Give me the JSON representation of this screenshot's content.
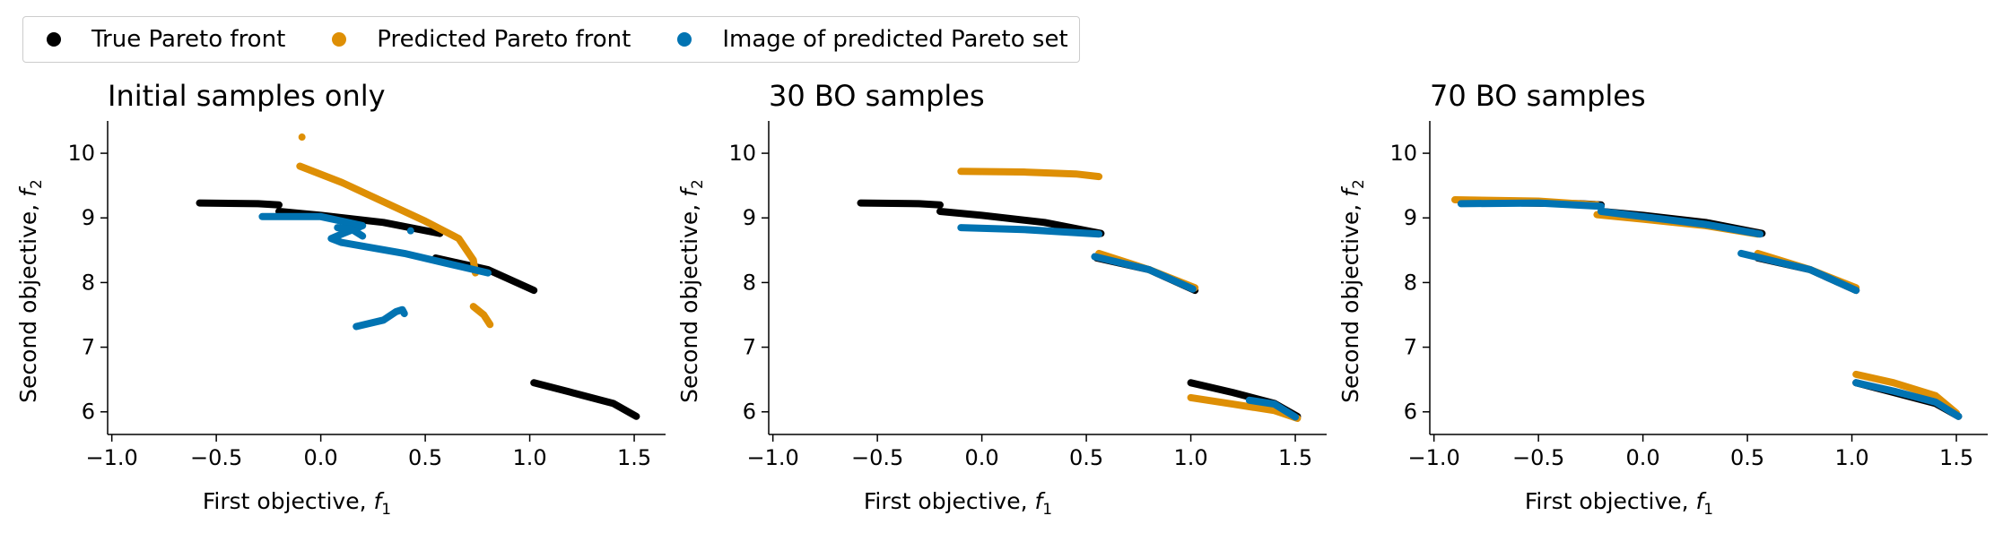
{
  "legend": [
    {
      "label": "True Pareto front",
      "color": "#000000"
    },
    {
      "label": "Predicted Pareto front",
      "color": "#de8f05"
    },
    {
      "label": "Image of predicted Pareto set",
      "color": "#0173b2"
    }
  ],
  "chart_data": [
    {
      "type": "scatter",
      "title": "Initial samples only",
      "xlabel": "First objective, ",
      "ylabel": "Second objective, ",
      "xlim": [
        -1.02,
        1.65
      ],
      "ylim": [
        5.65,
        10.5
      ],
      "xticks": [
        -1.0,
        -0.5,
        0.0,
        0.5,
        1.0,
        1.5
      ],
      "yticks": [
        6,
        7,
        8,
        9,
        10
      ],
      "series": [
        {
          "name": "True Pareto front",
          "color": "#000000",
          "segments": [
            [
              [
                -0.58,
                9.23
              ],
              [
                -0.3,
                9.22
              ],
              [
                -0.2,
                9.2
              ]
            ],
            [
              [
                -0.2,
                9.1
              ],
              [
                0.0,
                9.04
              ],
              [
                0.3,
                8.93
              ],
              [
                0.57,
                8.76
              ]
            ],
            [
              [
                0.55,
                8.38
              ],
              [
                0.8,
                8.2
              ],
              [
                1.02,
                7.88
              ]
            ],
            [
              [
                1.02,
                6.45
              ],
              [
                1.2,
                6.3
              ],
              [
                1.4,
                6.13
              ],
              [
                1.51,
                5.93
              ]
            ]
          ]
        },
        {
          "name": "Predicted Pareto front",
          "color": "#de8f05",
          "points": [
            [
              -0.09,
              10.25
            ]
          ],
          "segments": [
            [
              [
                -0.1,
                9.8
              ],
              [
                0.1,
                9.55
              ],
              [
                0.3,
                9.25
              ],
              [
                0.5,
                8.95
              ],
              [
                0.66,
                8.68
              ],
              [
                0.73,
                8.35
              ],
              [
                0.74,
                8.15
              ]
            ],
            [
              [
                0.73,
                7.63
              ],
              [
                0.78,
                7.5
              ],
              [
                0.81,
                7.35
              ]
            ]
          ]
        },
        {
          "name": "Image of predicted Pareto set",
          "color": "#0173b2",
          "points": [
            [
              0.43,
              8.8
            ]
          ],
          "segments": [
            [
              [
                -0.28,
                9.02
              ],
              [
                0.0,
                9.02
              ],
              [
                0.2,
                8.88
              ],
              [
                0.1,
                8.75
              ],
              [
                0.05,
                8.68
              ],
              [
                0.1,
                8.62
              ],
              [
                0.4,
                8.45
              ],
              [
                0.6,
                8.3
              ],
              [
                0.8,
                8.15
              ]
            ],
            [
              [
                0.08,
                8.85
              ],
              [
                0.15,
                8.82
              ],
              [
                0.2,
                8.72
              ]
            ],
            [
              [
                0.17,
                7.32
              ],
              [
                0.3,
                7.42
              ],
              [
                0.36,
                7.55
              ],
              [
                0.39,
                7.58
              ],
              [
                0.4,
                7.52
              ]
            ]
          ]
        }
      ]
    },
    {
      "type": "scatter",
      "title": "30 BO samples",
      "xlabel": "First objective, ",
      "ylabel": "Second objective, ",
      "xlim": [
        -1.02,
        1.65
      ],
      "ylim": [
        5.65,
        10.5
      ],
      "xticks": [
        -1.0,
        -0.5,
        0.0,
        0.5,
        1.0,
        1.5
      ],
      "yticks": [
        6,
        7,
        8,
        9,
        10
      ],
      "series": [
        {
          "name": "True Pareto front",
          "color": "#000000",
          "segments": [
            [
              [
                -0.58,
                9.23
              ],
              [
                -0.3,
                9.22
              ],
              [
                -0.2,
                9.2
              ]
            ],
            [
              [
                -0.2,
                9.1
              ],
              [
                0.0,
                9.04
              ],
              [
                0.3,
                8.93
              ],
              [
                0.57,
                8.76
              ]
            ],
            [
              [
                0.55,
                8.38
              ],
              [
                0.8,
                8.2
              ],
              [
                1.02,
                7.88
              ]
            ],
            [
              [
                1.0,
                6.45
              ],
              [
                1.2,
                6.3
              ],
              [
                1.4,
                6.13
              ],
              [
                1.51,
                5.93
              ]
            ]
          ]
        },
        {
          "name": "Predicted Pareto front",
          "color": "#de8f05",
          "segments": [
            [
              [
                -0.1,
                9.72
              ],
              [
                0.2,
                9.71
              ],
              [
                0.45,
                9.68
              ],
              [
                0.56,
                9.64
              ]
            ],
            [
              [
                0.56,
                8.45
              ],
              [
                0.8,
                8.2
              ],
              [
                1.02,
                7.92
              ]
            ],
            [
              [
                1.0,
                6.22
              ],
              [
                1.2,
                6.12
              ],
              [
                1.4,
                6.02
              ],
              [
                1.51,
                5.9
              ]
            ]
          ]
        },
        {
          "name": "Image of predicted Pareto set",
          "color": "#0173b2",
          "segments": [
            [
              [
                -0.1,
                8.85
              ],
              [
                0.2,
                8.82
              ],
              [
                0.56,
                8.75
              ]
            ],
            [
              [
                0.54,
                8.4
              ],
              [
                0.8,
                8.2
              ],
              [
                1.01,
                7.9
              ]
            ],
            [
              [
                1.28,
                6.18
              ],
              [
                1.4,
                6.12
              ],
              [
                1.5,
                5.92
              ]
            ]
          ]
        }
      ]
    },
    {
      "type": "scatter",
      "title": "70 BO samples",
      "xlabel": "First objective, ",
      "ylabel": "Second objective, ",
      "xlim": [
        -1.02,
        1.65
      ],
      "ylim": [
        5.65,
        10.5
      ],
      "xticks": [
        -1.0,
        -0.5,
        0.0,
        0.5,
        1.0,
        1.5
      ],
      "yticks": [
        6,
        7,
        8,
        9,
        10
      ],
      "series": [
        {
          "name": "True Pareto front",
          "color": "#000000",
          "segments": [
            [
              [
                -0.58,
                9.23
              ],
              [
                -0.3,
                9.22
              ],
              [
                -0.2,
                9.2
              ]
            ],
            [
              [
                -0.2,
                9.1
              ],
              [
                0.0,
                9.04
              ],
              [
                0.3,
                8.93
              ],
              [
                0.57,
                8.76
              ]
            ],
            [
              [
                0.55,
                8.38
              ],
              [
                0.8,
                8.2
              ],
              [
                1.02,
                7.88
              ]
            ],
            [
              [
                1.02,
                6.45
              ],
              [
                1.2,
                6.3
              ],
              [
                1.4,
                6.13
              ],
              [
                1.51,
                5.93
              ]
            ]
          ]
        },
        {
          "name": "Predicted Pareto front",
          "color": "#de8f05",
          "segments": [
            [
              [
                -0.9,
                9.28
              ],
              [
                -0.5,
                9.26
              ],
              [
                -0.22,
                9.2
              ]
            ],
            [
              [
                -0.22,
                9.05
              ],
              [
                0.0,
                8.98
              ],
              [
                0.3,
                8.88
              ],
              [
                0.55,
                8.75
              ]
            ],
            [
              [
                0.55,
                8.45
              ],
              [
                0.8,
                8.2
              ],
              [
                1.02,
                7.92
              ]
            ],
            [
              [
                1.02,
                6.58
              ],
              [
                1.2,
                6.45
              ],
              [
                1.4,
                6.25
              ],
              [
                1.5,
                5.98
              ]
            ]
          ]
        },
        {
          "name": "Image of predicted Pareto set",
          "color": "#0173b2",
          "segments": [
            [
              [
                -0.87,
                9.22
              ],
              [
                -0.5,
                9.23
              ],
              [
                -0.2,
                9.18
              ]
            ],
            [
              [
                -0.2,
                9.1
              ],
              [
                0.0,
                9.02
              ],
              [
                0.3,
                8.9
              ],
              [
                0.56,
                8.75
              ]
            ],
            [
              [
                0.47,
                8.45
              ],
              [
                0.8,
                8.2
              ],
              [
                1.02,
                7.88
              ]
            ],
            [
              [
                1.02,
                6.45
              ],
              [
                1.2,
                6.32
              ],
              [
                1.4,
                6.15
              ],
              [
                1.51,
                5.93
              ]
            ]
          ]
        }
      ]
    }
  ]
}
